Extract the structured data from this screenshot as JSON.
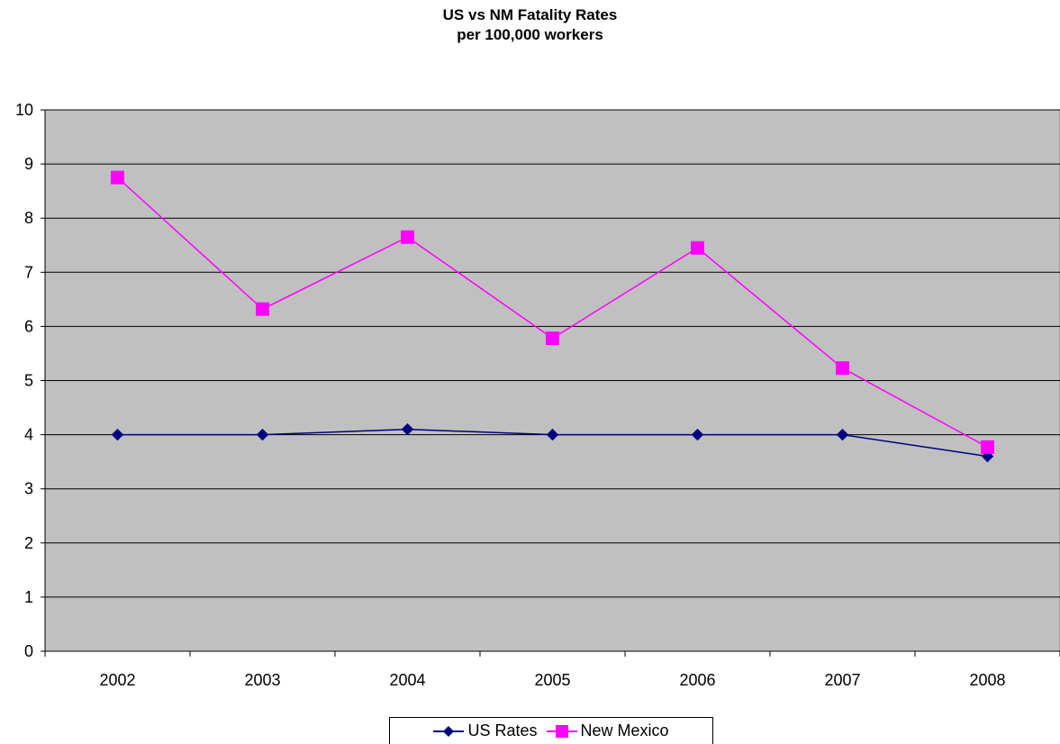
{
  "chart_data": {
    "type": "line",
    "title": "US vs NM Fatality Rates",
    "subtitle": "per 100,000 workers",
    "categories": [
      "2002",
      "2003",
      "2004",
      "2005",
      "2006",
      "2007",
      "2008"
    ],
    "ylim": [
      0,
      10
    ],
    "yticks": [
      0,
      1,
      2,
      3,
      4,
      5,
      6,
      7,
      8,
      9,
      10
    ],
    "grid": true,
    "legend_position": "bottom",
    "plot_background": "#c0c0c0",
    "series": [
      {
        "name": "US Rates",
        "color": "#000080",
        "marker": "diamond",
        "values": [
          4.0,
          4.0,
          4.1,
          4.0,
          4.0,
          4.0,
          3.6
        ]
      },
      {
        "name": "New Mexico",
        "color": "#ff00ff",
        "marker": "square",
        "values": [
          8.75,
          6.32,
          7.65,
          5.78,
          7.45,
          5.23,
          3.77
        ]
      }
    ]
  }
}
